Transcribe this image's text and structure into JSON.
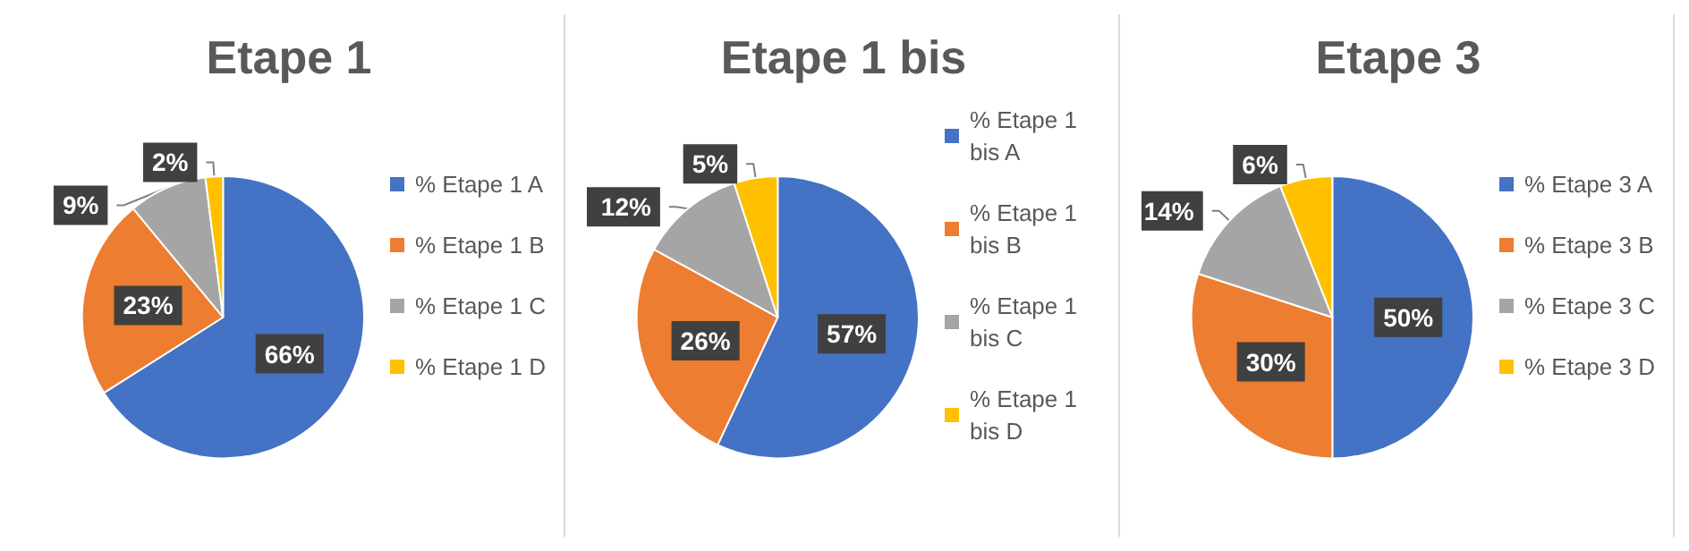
{
  "chart_data": [
    {
      "type": "pie",
      "title": "Etape 1",
      "categories": [
        "% Etape 1 A",
        "% Etape 1 B",
        "% Etape 1 C",
        "% Etape 1 D"
      ],
      "values": [
        66,
        23,
        9,
        2
      ],
      "value_labels": [
        "66%",
        "23%",
        "9%",
        "2%"
      ],
      "colors": [
        "#4472c4",
        "#ed7d31",
        "#a5a5a5",
        "#ffc000"
      ],
      "legend": "right"
    },
    {
      "type": "pie",
      "title": "Etape 1 bis",
      "categories": [
        "% Etape 1 bis A",
        "% Etape 1 bis B",
        "% Etape 1 bis C",
        "% Etape 1 bis D"
      ],
      "values": [
        57,
        26,
        12,
        5
      ],
      "value_labels": [
        "57%",
        "26%",
        "12%",
        "5%"
      ],
      "colors": [
        "#4472c4",
        "#ed7d31",
        "#a5a5a5",
        "#ffc000"
      ],
      "legend": "right"
    },
    {
      "type": "pie",
      "title": "Etape 3",
      "categories": [
        "% Etape 3 A",
        "% Etape 3 B",
        "% Etape 3 C",
        "% Etape 3 D"
      ],
      "values": [
        50,
        30,
        14,
        6
      ],
      "value_labels": [
        "50%",
        "30%",
        "14%",
        "6%"
      ],
      "colors": [
        "#4472c4",
        "#ed7d31",
        "#a5a5a5",
        "#ffc000"
      ],
      "legend": "right"
    }
  ]
}
